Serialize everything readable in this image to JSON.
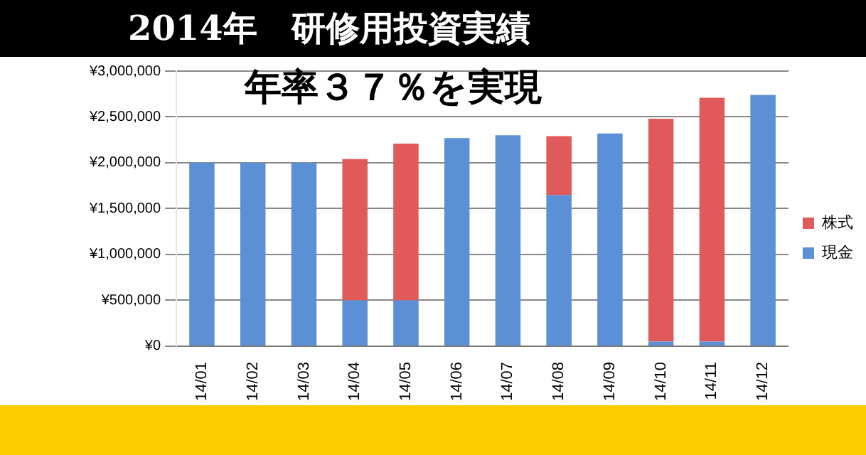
{
  "chart_data": {
    "type": "bar",
    "title": "2014年　研修用投資実績",
    "annotations": [
      "年率３７％を実現"
    ],
    "categories": [
      "14/01",
      "14/02",
      "14/03",
      "14/04",
      "14/05",
      "14/06",
      "14/07",
      "14/08",
      "14/09",
      "14/10",
      "14/11",
      "14/12"
    ],
    "series": [
      {
        "name": "現金",
        "color": "#5b8fd6",
        "values": [
          2000000,
          2000000,
          2000000,
          500000,
          500000,
          2270000,
          2300000,
          1650000,
          2320000,
          50000,
          50000,
          2740000
        ]
      },
      {
        "name": "株式",
        "color": "#e05a5a",
        "values": [
          null,
          null,
          null,
          1540000,
          1710000,
          null,
          null,
          640000,
          null,
          2430000,
          2660000,
          null
        ]
      }
    ],
    "stacked": true,
    "ylim": [
      0,
      3000000
    ],
    "yticks": [
      {
        "value": 0,
        "label": "¥0"
      },
      {
        "value": 500000,
        "label": "¥500,000"
      },
      {
        "value": 1000000,
        "label": "¥1,000,000"
      },
      {
        "value": 1500000,
        "label": "¥1,500,000"
      },
      {
        "value": 2000000,
        "label": "¥2,000,000"
      },
      {
        "value": 2500000,
        "label": "¥2,500,000"
      },
      {
        "value": 3000000,
        "label": "¥3,000,000"
      }
    ],
    "grid": "y",
    "legend": "right"
  }
}
